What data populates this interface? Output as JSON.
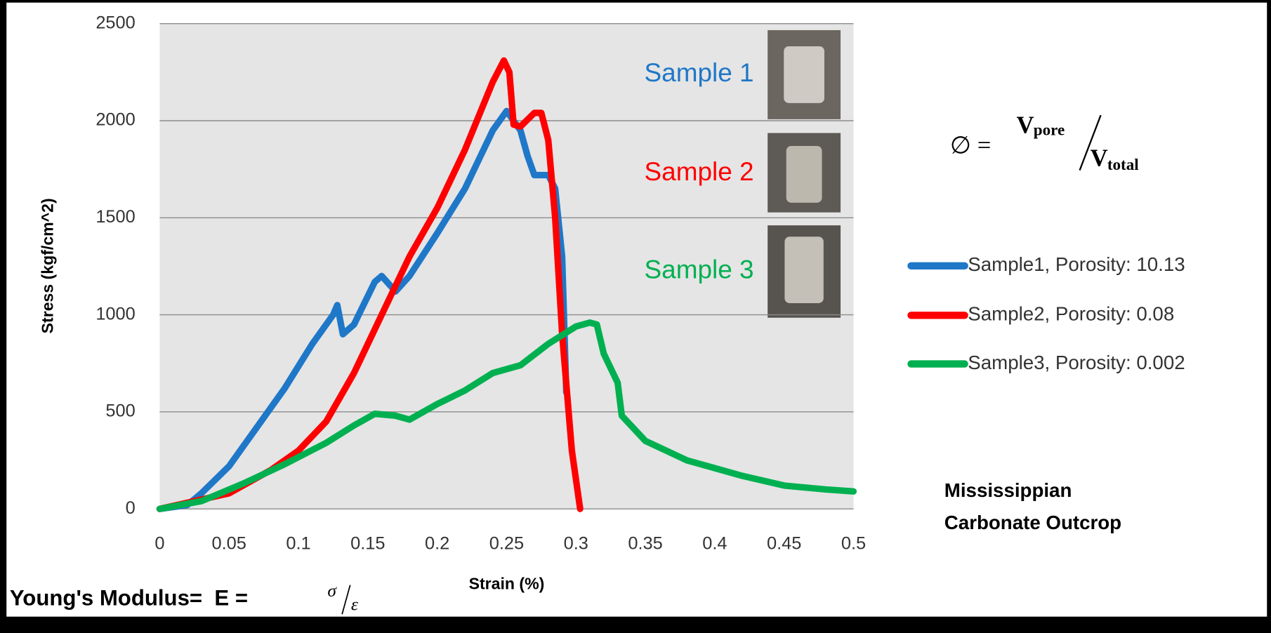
{
  "chart_data": {
    "type": "line",
    "x_label": "Strain (%)",
    "y_label": "Stress (kgf/cm^2)",
    "xlim": [
      0,
      0.5
    ],
    "xticks": [
      0,
      0.05,
      0.1,
      0.15,
      0.2,
      0.25,
      0.3,
      0.35,
      0.4,
      0.45,
      0.5
    ],
    "ylim": [
      0,
      2500
    ],
    "yticks": [
      0,
      500,
      1000,
      1500,
      2000,
      2500
    ],
    "grid": true,
    "legend": "right",
    "series": [
      {
        "name": "Sample1, Porosity: 10.13",
        "label": "Sample 1",
        "color": "#1f77c8",
        "x": [
          0,
          0.02,
          0.03,
          0.05,
          0.07,
          0.09,
          0.11,
          0.125,
          0.128,
          0.132,
          0.14,
          0.155,
          0.16,
          0.17,
          0.18,
          0.2,
          0.22,
          0.24,
          0.25,
          0.26,
          0.265,
          0.27,
          0.28,
          0.285,
          0.29,
          0.293
        ],
        "values": [
          0,
          20,
          80,
          220,
          420,
          620,
          850,
          1000,
          1050,
          900,
          950,
          1170,
          1200,
          1120,
          1200,
          1420,
          1650,
          1950,
          2050,
          1950,
          1820,
          1720,
          1720,
          1650,
          1300,
          600
        ]
      },
      {
        "name": "Sample2, Porosity: 0.08",
        "label": "Sample 2",
        "color": "#ff0000",
        "x": [
          0,
          0.05,
          0.08,
          0.1,
          0.12,
          0.14,
          0.16,
          0.18,
          0.2,
          0.22,
          0.24,
          0.248,
          0.252,
          0.255,
          0.26,
          0.27,
          0.275,
          0.28,
          0.285,
          0.29,
          0.297,
          0.303
        ],
        "values": [
          0,
          80,
          200,
          300,
          450,
          700,
          1000,
          1300,
          1550,
          1850,
          2200,
          2310,
          2250,
          1980,
          1970,
          2040,
          2040,
          1900,
          1500,
          900,
          300,
          0
        ]
      },
      {
        "name": "Sample3, Porosity: 0.002",
        "label": "Sample 3",
        "color": "#00b050",
        "x": [
          0,
          0.03,
          0.06,
          0.09,
          0.12,
          0.14,
          0.155,
          0.17,
          0.18,
          0.2,
          0.22,
          0.24,
          0.26,
          0.28,
          0.3,
          0.31,
          0.315,
          0.32,
          0.33,
          0.333,
          0.35,
          0.38,
          0.42,
          0.45,
          0.48,
          0.5
        ],
        "values": [
          0,
          40,
          130,
          230,
          340,
          430,
          490,
          480,
          460,
          540,
          610,
          700,
          740,
          850,
          940,
          960,
          950,
          800,
          650,
          480,
          350,
          250,
          170,
          120,
          100,
          90
        ]
      }
    ],
    "annotations": {
      "region": "Mississippian Carbonate Outcrop",
      "porosity_formula": {
        "lhs": "∅ =",
        "numerator": "V",
        "numerator_sub": "pore",
        "denominator": "V",
        "denominator_sub": "total"
      },
      "youngs_modulus": {
        "lhs": "Young's Modulus=  E = ",
        "numerator": "σ",
        "denominator": "ε"
      }
    }
  }
}
